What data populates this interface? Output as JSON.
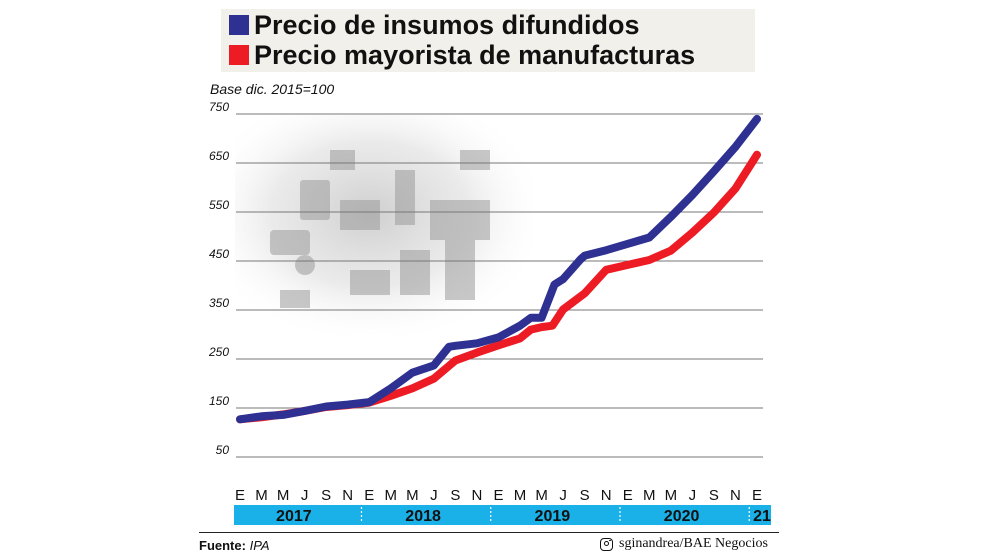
{
  "chart_data": {
    "type": "line",
    "subtitle": "Base dic. 2015=100",
    "ylim": [
      50,
      750
    ],
    "yticks": [
      50,
      150,
      250,
      350,
      450,
      550,
      650,
      750
    ],
    "grid": true,
    "legend_position": "top",
    "month_labels": [
      "E",
      "M",
      "M",
      "J",
      "S",
      "N",
      "E",
      "M",
      "M",
      "J",
      "S",
      "N",
      "E",
      "M",
      "M",
      "J",
      "S",
      "N",
      "E",
      "M",
      "M",
      "J",
      "S",
      "N",
      "E"
    ],
    "year_labels": [
      "2017",
      "2018",
      "2019",
      "2020",
      "21"
    ],
    "series": [
      {
        "name": "Precio de insumos difundidos",
        "color": "#2e3192",
        "points": [
          [
            0,
            127
          ],
          [
            1,
            133
          ],
          [
            2,
            136
          ],
          [
            3,
            144
          ],
          [
            4,
            153
          ],
          [
            5,
            157
          ],
          [
            6,
            162
          ],
          [
            7,
            190
          ],
          [
            8,
            222
          ],
          [
            9,
            237
          ],
          [
            9.7,
            275
          ],
          [
            10,
            277
          ],
          [
            11,
            282
          ],
          [
            12,
            294
          ],
          [
            13,
            318
          ],
          [
            13.5,
            334
          ],
          [
            14,
            334
          ],
          [
            14.6,
            402
          ],
          [
            15,
            413
          ],
          [
            15.8,
            453
          ],
          [
            16,
            461
          ],
          [
            17,
            472
          ],
          [
            18,
            485
          ],
          [
            19,
            498
          ],
          [
            20,
            540
          ],
          [
            21,
            585
          ],
          [
            22,
            633
          ],
          [
            23,
            683
          ],
          [
            24,
            740
          ]
        ]
      },
      {
        "name": "Precio mayorista de manufacturas",
        "color": "#ed1c24",
        "points": [
          [
            0,
            127
          ],
          [
            1,
            131
          ],
          [
            2,
            137
          ],
          [
            3,
            144
          ],
          [
            4,
            152
          ],
          [
            5,
            156
          ],
          [
            6,
            161
          ],
          [
            7,
            175
          ],
          [
            8,
            190
          ],
          [
            9,
            210
          ],
          [
            10,
            247
          ],
          [
            11,
            263
          ],
          [
            12,
            278
          ],
          [
            13,
            292
          ],
          [
            13.5,
            310
          ],
          [
            14,
            315
          ],
          [
            14.5,
            318
          ],
          [
            15,
            351
          ],
          [
            16,
            384
          ],
          [
            17,
            432
          ],
          [
            18,
            442
          ],
          [
            19,
            452
          ],
          [
            20,
            471
          ],
          [
            21,
            508
          ],
          [
            22,
            549
          ],
          [
            23,
            598
          ],
          [
            24,
            667
          ]
        ]
      }
    ]
  },
  "footer": {
    "source_label": "Fuente:",
    "source_value": "IPA",
    "credit": "sginandrea/BAE Negocios",
    "credit_icon": "instagram-icon"
  },
  "colors": {
    "band": "#1ab0e8",
    "grid": "#777777",
    "legend_bg": "#f2f0ea",
    "photo_tint": "#c9c9c9"
  }
}
